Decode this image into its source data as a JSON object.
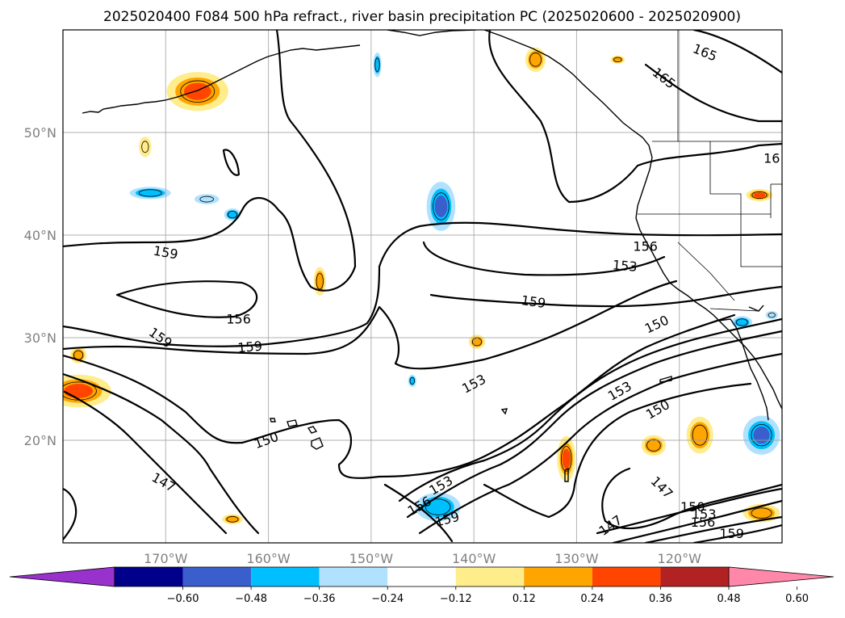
{
  "title": "2025020400 F084 500 hPa refract., river basin precipitation PC (2025020600 - 2025020900)",
  "chart_data": {
    "type": "contour",
    "lon_range": [
      -180,
      -110
    ],
    "lat_range": [
      10,
      60
    ],
    "grid": true,
    "x_ticks": [
      {
        "lon": -170,
        "label": "170°W"
      },
      {
        "lon": -160,
        "label": "160°W"
      },
      {
        "lon": -150,
        "label": "150°W"
      },
      {
        "lon": -140,
        "label": "140°W"
      },
      {
        "lon": -130,
        "label": "130°W"
      },
      {
        "lon": -120,
        "label": "120°W"
      }
    ],
    "y_ticks": [
      {
        "lat": 20,
        "label": "20°N"
      },
      {
        "lat": 30,
        "label": "30°N"
      },
      {
        "lat": 40,
        "label": "40°N"
      },
      {
        "lat": 50,
        "label": "50°N"
      }
    ],
    "contour_levels": [
      147,
      150,
      153,
      156,
      159,
      162,
      165
    ],
    "contour_labels": [
      {
        "text": "165",
        "lon": -117.5,
        "lat": 57.8,
        "rot": 22
      },
      {
        "text": "165",
        "lon": -121.5,
        "lat": 55.3,
        "rot": 38
      },
      {
        "text": "16",
        "lon": -111.0,
        "lat": 47.5,
        "rot": 0
      },
      {
        "text": "159",
        "lon": -170.0,
        "lat": 38.3,
        "rot": 10
      },
      {
        "text": "156",
        "lon": -162.9,
        "lat": 31.8,
        "rot": 0
      },
      {
        "text": "159",
        "lon": -170.5,
        "lat": 30.0,
        "rot": 35
      },
      {
        "text": "159",
        "lon": -161.8,
        "lat": 29.1,
        "rot": -5
      },
      {
        "text": "156",
        "lon": -123.3,
        "lat": 38.9,
        "rot": 0
      },
      {
        "text": "153",
        "lon": -125.3,
        "lat": 37.0,
        "rot": 5
      },
      {
        "text": "159",
        "lon": -134.2,
        "lat": 33.5,
        "rot": 8
      },
      {
        "text": "150",
        "lon": -122.2,
        "lat": 31.3,
        "rot": -25
      },
      {
        "text": "153",
        "lon": -140.0,
        "lat": 25.5,
        "rot": -28
      },
      {
        "text": "153",
        "lon": -125.8,
        "lat": 24.8,
        "rot": -30
      },
      {
        "text": "150",
        "lon": -122.1,
        "lat": 23.0,
        "rot": -30
      },
      {
        "text": "150",
        "lon": -160.2,
        "lat": 20.0,
        "rot": -20
      },
      {
        "text": "147",
        "lon": -170.2,
        "lat": 15.9,
        "rot": 30
      },
      {
        "text": "153",
        "lon": -143.2,
        "lat": 15.6,
        "rot": -30
      },
      {
        "text": "156",
        "lon": -145.3,
        "lat": 13.6,
        "rot": -30
      },
      {
        "text": "159",
        "lon": -142.6,
        "lat": 12.3,
        "rot": -15
      },
      {
        "text": "147",
        "lon": -121.7,
        "lat": 15.4,
        "rot": 45
      },
      {
        "text": "147",
        "lon": -126.7,
        "lat": 11.7,
        "rot": -35
      },
      {
        "text": "150",
        "lon": -118.7,
        "lat": 13.5,
        "rot": 0
      },
      {
        "text": "153",
        "lon": -117.6,
        "lat": 12.8,
        "rot": 0
      },
      {
        "text": "156",
        "lon": -117.7,
        "lat": 12.0,
        "rot": 0
      },
      {
        "text": "159",
        "lon": -114.9,
        "lat": 10.9,
        "rot": 0
      }
    ],
    "colorbar": {
      "levels": [
        -0.72,
        -0.6,
        -0.48,
        -0.36,
        -0.24,
        -0.12,
        0.12,
        0.24,
        0.36,
        0.48,
        0.6,
        0.72
      ],
      "labels": [
        "−0.60",
        "−0.48",
        "−0.36",
        "−0.24",
        "−0.12",
        "0.12",
        "0.24",
        "0.36",
        "0.48",
        "0.60"
      ],
      "colors": [
        "#9932CC",
        "#00008B",
        "#3A5FCD",
        "#00BFFF",
        "#B0E2FF",
        "#FFFFFF",
        "#FFEC8B",
        "#FFA500",
        "#FF4500",
        "#B22222",
        "#FF88AA"
      ],
      "extend": "both"
    },
    "shaded_regions": [
      {
        "lon": -166.9,
        "lat": 54.0,
        "rlon": 3.0,
        "rlat": 1.9,
        "value": 0.4
      },
      {
        "lon": -134.0,
        "lat": 57.1,
        "rlon": 1.0,
        "rlat": 1.2,
        "value": 0.33
      },
      {
        "lon": -126.0,
        "lat": 57.1,
        "rlon": 0.7,
        "rlat": 0.4,
        "value": 0.25
      },
      {
        "lon": -167.0,
        "lat": 38.3,
        "rlon": 0.0,
        "rlat": 0.0,
        "value": 0.0
      },
      {
        "lon": -172.0,
        "lat": 48.6,
        "rlon": 0.6,
        "rlat": 1.0,
        "value": 0.22
      },
      {
        "lon": -171.5,
        "lat": 44.1,
        "rlon": 2.0,
        "rlat": 0.6,
        "value": -0.35
      },
      {
        "lon": -166.0,
        "lat": 43.5,
        "rlon": 1.2,
        "rlat": 0.5,
        "value": -0.2
      },
      {
        "lon": -143.2,
        "lat": 42.8,
        "rlon": 1.4,
        "rlat": 2.4,
        "value": -0.45
      },
      {
        "lon": -149.4,
        "lat": 56.6,
        "rlon": 0.4,
        "rlat": 1.2,
        "value": -0.3
      },
      {
        "lon": -163.5,
        "lat": 42.0,
        "rlon": 0.8,
        "rlat": 0.6,
        "value": -0.28
      },
      {
        "lon": -155.0,
        "lat": 35.5,
        "rlon": 0.6,
        "rlat": 1.4,
        "value": 0.35
      },
      {
        "lon": -178.5,
        "lat": 24.8,
        "rlon": 3.2,
        "rlat": 1.6,
        "value": 0.42
      },
      {
        "lon": -178.5,
        "lat": 28.3,
        "rlon": 0.8,
        "rlat": 0.8,
        "value": 0.24
      },
      {
        "lon": -139.7,
        "lat": 29.6,
        "rlon": 0.8,
        "rlat": 0.7,
        "value": 0.25
      },
      {
        "lon": -146.0,
        "lat": 25.8,
        "rlon": 0.4,
        "rlat": 0.6,
        "value": -0.3
      },
      {
        "lon": -131.0,
        "lat": 18.2,
        "rlon": 0.9,
        "rlat": 2.2,
        "value": 0.42
      },
      {
        "lon": -118.0,
        "lat": 20.5,
        "rlon": 1.3,
        "rlat": 1.8,
        "value": 0.35
      },
      {
        "lon": -122.5,
        "lat": 19.5,
        "rlon": 1.2,
        "rlat": 1.0,
        "value": 0.3
      },
      {
        "lon": -112.0,
        "lat": 20.5,
        "rlon": 1.8,
        "rlat": 1.9,
        "value": -0.42
      },
      {
        "lon": -143.5,
        "lat": 13.5,
        "rlon": 2.2,
        "rlat": 1.4,
        "value": -0.32
      },
      {
        "lon": -112.0,
        "lat": 12.9,
        "rlon": 1.8,
        "rlat": 0.9,
        "value": 0.35
      },
      {
        "lon": -112.2,
        "lat": 43.9,
        "rlon": 1.3,
        "rlat": 0.6,
        "value": 0.38
      },
      {
        "lon": -113.9,
        "lat": 31.5,
        "rlon": 1.0,
        "rlat": 0.6,
        "value": -0.28
      },
      {
        "lon": -111.0,
        "lat": 32.2,
        "rlon": 0.6,
        "rlat": 0.4,
        "value": -0.22
      },
      {
        "lon": -163.5,
        "lat": 12.3,
        "rlon": 1.0,
        "rlat": 0.5,
        "value": 0.3
      }
    ]
  }
}
